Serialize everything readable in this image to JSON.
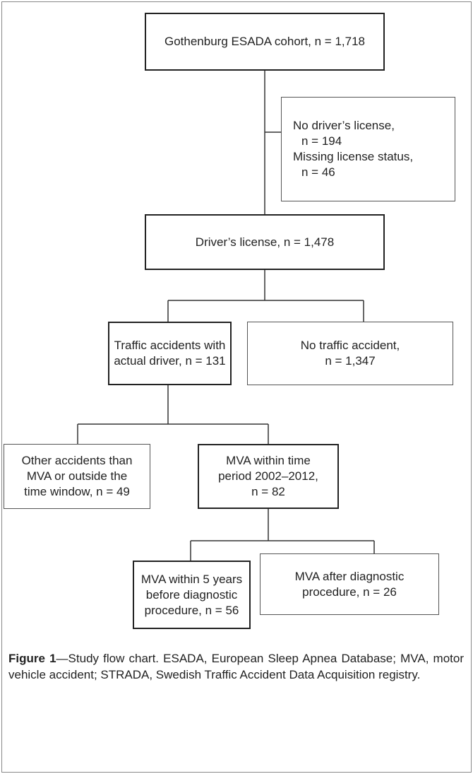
{
  "nodes": [
    {
      "lines": [
        "Gothenburg ESADA cohort, n = 1,718"
      ]
    },
    {
      "lines": [
        "No driver’s license,",
        "n = 194",
        "Missing license status,",
        "n = 46"
      ]
    },
    {
      "lines": [
        "Driver’s license, n = 1,478"
      ]
    },
    {
      "lines": [
        "Traffic accidents with",
        "actual driver, n = 131"
      ]
    },
    {
      "lines": [
        "No traffic accident,",
        "n = 1,347"
      ]
    },
    {
      "lines": [
        "Other accidents than",
        "MVA or outside the",
        "time window, n = 49"
      ]
    },
    {
      "lines": [
        "MVA within time",
        "period 2002–2012,",
        "n = 82"
      ]
    },
    {
      "lines": [
        "MVA within 5 years",
        "before diagnostic",
        "procedure, n = 56"
      ]
    },
    {
      "lines": [
        "MVA after diagnostic",
        "procedure, n = 26"
      ]
    }
  ],
  "caption": {
    "label": "Figure 1",
    "text": "—Study flow chart. ESADA, European Sleep Apnea Database; MVA, motor vehicle accident; STRADA, Swedish Traffic Accident Data Acquisition registry."
  }
}
